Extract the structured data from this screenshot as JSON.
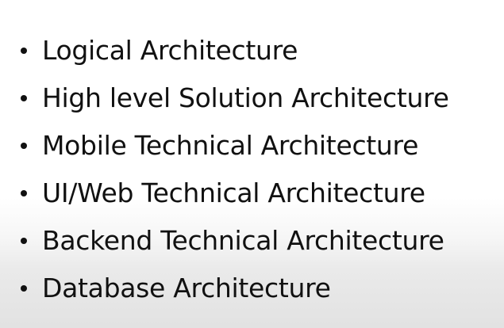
{
  "slide": {
    "bullets": [
      {
        "label": "Logical Architecture"
      },
      {
        "label": "High level Solution Architecture"
      },
      {
        "label": "Mobile Technical Architecture"
      },
      {
        "label": "UI/Web Technical Architecture"
      },
      {
        "label": "Backend Technical Architecture"
      },
      {
        "label": "Database Architecture"
      }
    ]
  }
}
